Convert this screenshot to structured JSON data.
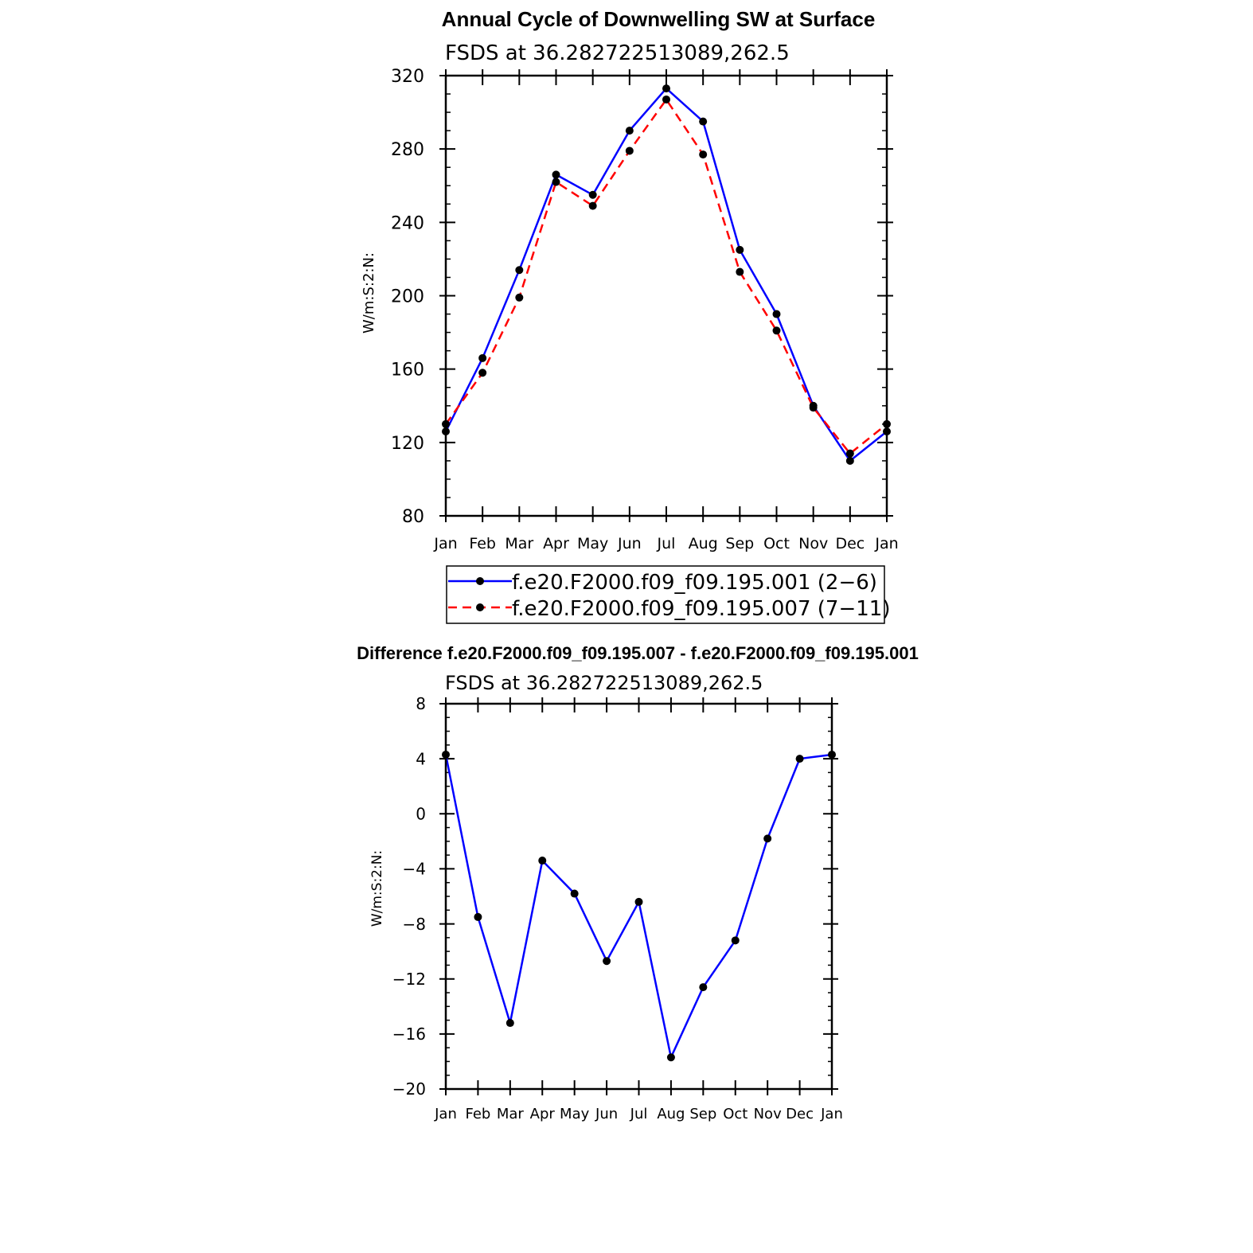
{
  "chart_data": [
    {
      "type": "line",
      "title": "Annual Cycle of Downwelling SW at Surface",
      "subtitle": "FSDS at 36.282722513089,262.5",
      "xlabel": "",
      "ylabel": "W/m:S:2:N:",
      "categories": [
        "Jan",
        "Feb",
        "Mar",
        "Apr",
        "May",
        "Jun",
        "Jul",
        "Aug",
        "Sep",
        "Oct",
        "Nov",
        "Dec",
        "Jan"
      ],
      "ylim": [
        80,
        320
      ],
      "yticks": [
        80,
        120,
        160,
        200,
        240,
        280,
        320
      ],
      "yticks_minor_step": 10,
      "grid": false,
      "legend_position": "bottom",
      "series": [
        {
          "name": "f.e20.F2000.f09_f09.195.001 (2−6)",
          "color": "#0000ff",
          "style": "solid",
          "values": [
            126,
            166,
            214,
            266,
            255,
            290,
            313,
            295,
            225,
            190,
            140,
            110,
            126
          ]
        },
        {
          "name": "f.e20.F2000.f09_f09.195.007 (7−11)",
          "color": "#ff0000",
          "style": "dashed",
          "values": [
            130,
            158,
            199,
            262,
            249,
            279,
            307,
            277,
            213,
            181,
            139,
            114,
            130
          ]
        }
      ]
    },
    {
      "type": "line",
      "title": "Difference f.e20.F2000.f09_f09.195.007 - f.e20.F2000.f09_f09.195.001",
      "subtitle": "FSDS at 36.282722513089,262.5",
      "xlabel": "",
      "ylabel": "W/m:S:2:N:",
      "categories": [
        "Jan",
        "Feb",
        "Mar",
        "Apr",
        "May",
        "Jun",
        "Jul",
        "Aug",
        "Sep",
        "Oct",
        "Nov",
        "Dec",
        "Jan"
      ],
      "ylim": [
        -20,
        8
      ],
      "yticks": [
        -20,
        -16,
        -12,
        -8,
        -4,
        0,
        4,
        8
      ],
      "ytick_labels": [
        "−20",
        "−16",
        "−12",
        "−8",
        "−4",
        "0",
        "4",
        "8"
      ],
      "yticks_minor_step": 1,
      "grid": false,
      "series": [
        {
          "name": "Difference",
          "color": "#0000ff",
          "style": "solid",
          "values": [
            4.3,
            -7.5,
            -15.2,
            -3.4,
            -5.8,
            -10.7,
            -6.4,
            -17.7,
            -12.6,
            -9.2,
            -1.8,
            4.0,
            4.3
          ]
        }
      ]
    }
  ]
}
